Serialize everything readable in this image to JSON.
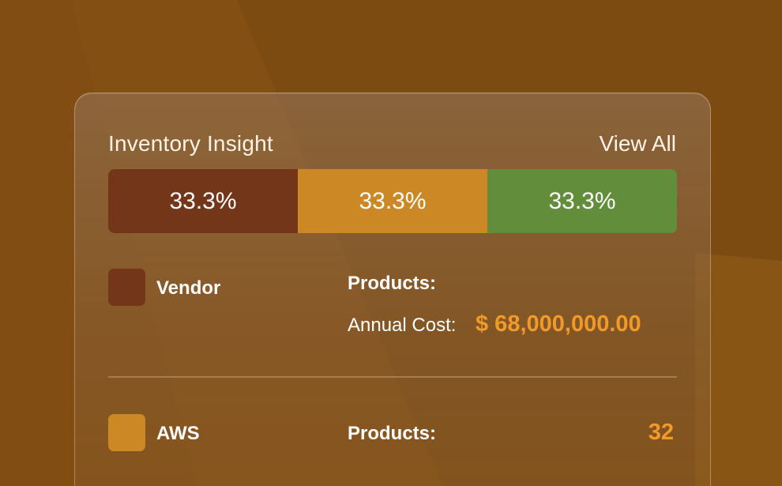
{
  "header": {
    "title": "Inventory Insight",
    "view_all": "View All"
  },
  "distribution": [
    {
      "label": "33.3%",
      "value": 33.3,
      "color": "#733619"
    },
    {
      "label": "33.3%",
      "value": 33.3,
      "color": "#cb8825"
    },
    {
      "label": "33.3%",
      "value": 33.3,
      "color": "#628d3b"
    }
  ],
  "items": [
    {
      "name": "Vendor",
      "color": "#733619",
      "products_label": "Products:",
      "annual_cost_label": "Annual Cost:",
      "annual_cost_value": "$ 68,000,000.00"
    },
    {
      "name": "AWS",
      "color": "#cb8825",
      "products_label": "Products:",
      "products_value": "32"
    }
  ]
}
